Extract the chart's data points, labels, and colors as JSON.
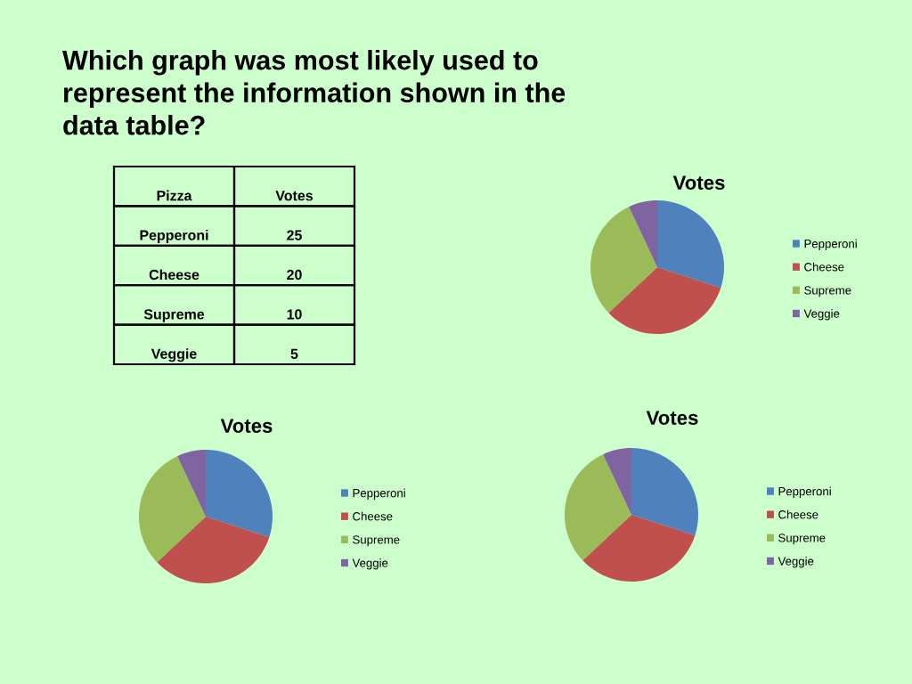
{
  "chart_data": [
    {
      "type": "other",
      "title": "Which graph was most likely used to represent the information shown in the data table?",
      "annotations": [
        "Pizza",
        "Votes"
      ],
      "categories": [
        "Pepperoni",
        "Cheese",
        "Supreme",
        "Veggie"
      ],
      "values": [
        25,
        20,
        10,
        5
      ],
      "data_labels": true
    },
    {
      "type": "pie",
      "title": "Votes",
      "categories": [
        "Pepperoni",
        "Cheese",
        "Supreme",
        "Veggie"
      ],
      "values": [
        30,
        33,
        30,
        7
      ],
      "colors": [
        "#4f81bd",
        "#c0504d",
        "#9bbb59",
        "#8064a2"
      ],
      "legend": "right"
    },
    {
      "type": "pie",
      "title": "Votes",
      "categories": [
        "Pepperoni",
        "Cheese",
        "Supreme",
        "Veggie"
      ],
      "values": [
        30,
        33,
        30,
        7
      ],
      "colors": [
        "#4f81bd",
        "#c0504d",
        "#9bbb59",
        "#8064a2"
      ],
      "legend": "right"
    },
    {
      "type": "pie",
      "title": "Votes",
      "categories": [
        "Pepperoni",
        "Cheese",
        "Supreme",
        "Veggie"
      ],
      "values": [
        30,
        33,
        30,
        7
      ],
      "colors": [
        "#4f81bd",
        "#c0504d",
        "#9bbb59",
        "#8064a2"
      ],
      "legend": "right"
    }
  ]
}
